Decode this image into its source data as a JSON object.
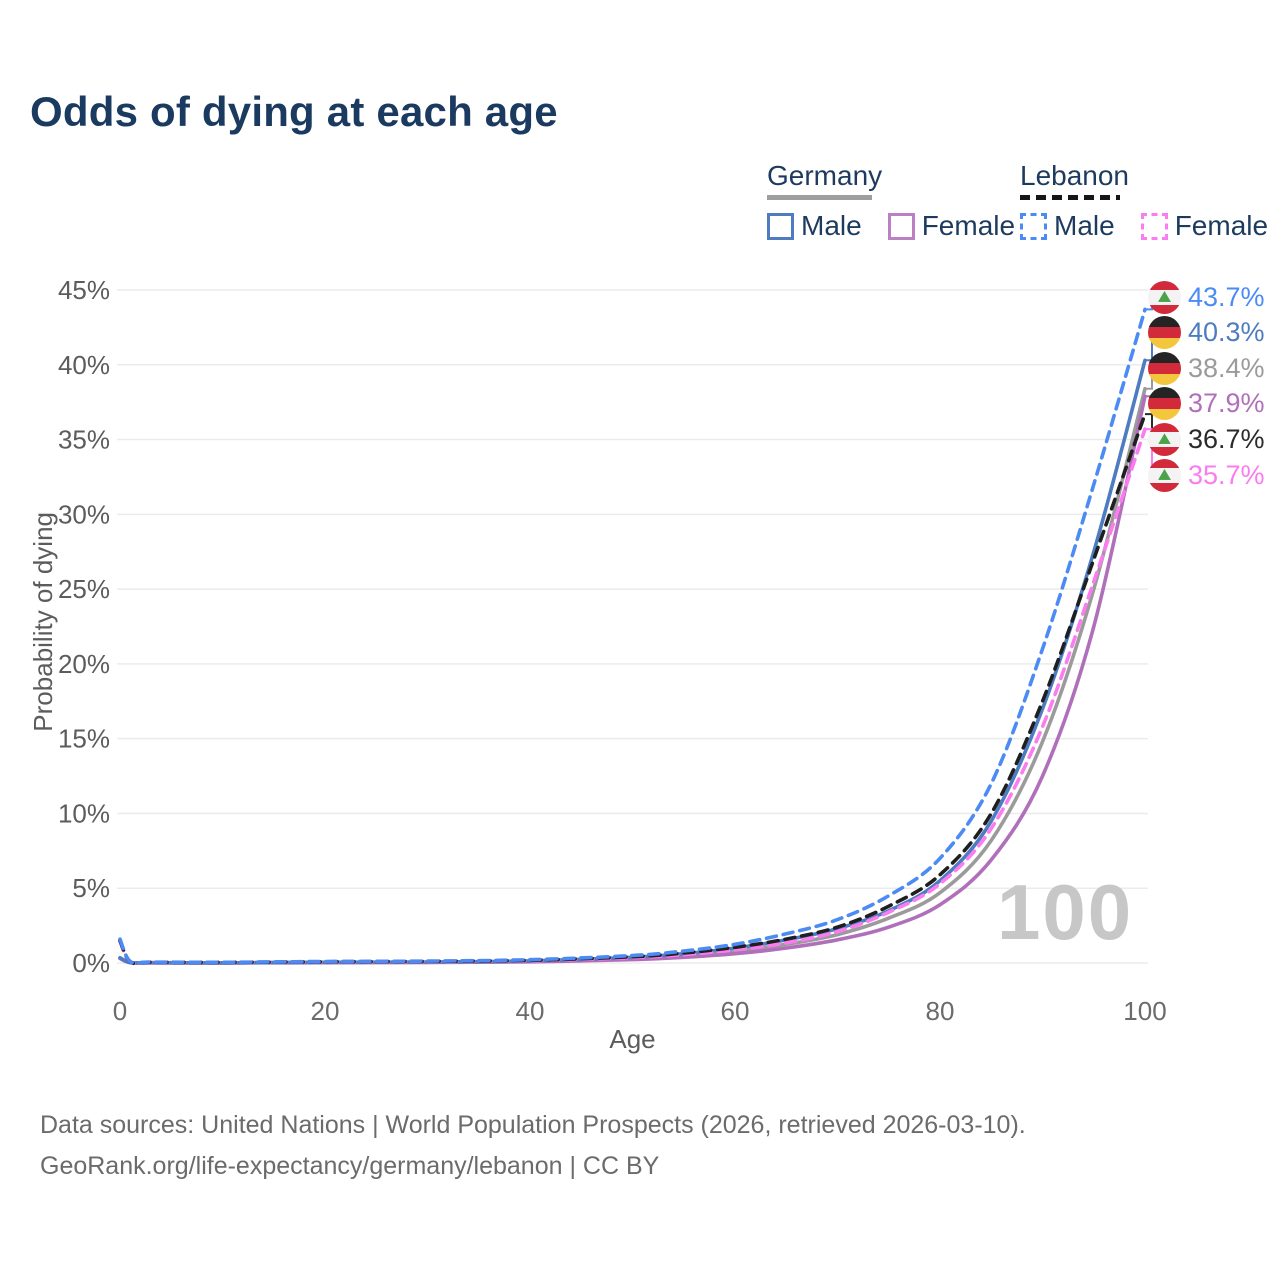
{
  "header": {
    "title": "Odds of dying at each age"
  },
  "legend": {
    "germany": {
      "label": "Germany",
      "male": "Male",
      "female": "Female"
    },
    "lebanon": {
      "label": "Lebanon",
      "male": "Male",
      "female": "Female"
    }
  },
  "watermark": {
    "text": "100"
  },
  "footer": {
    "line1": "Data sources: United Nations | World Population Prospects (2026, retrieved 2026-03-10).",
    "line2": "GeoRank.org/life-expectancy/germany/lebanon | CC BY"
  },
  "chart_data": {
    "type": "line",
    "title": "Odds of dying at each age",
    "xlabel": "Age",
    "ylabel": "Probability of dying",
    "xlim": [
      0,
      100
    ],
    "ylim_pct": [
      0,
      45
    ],
    "grid": "horizontal",
    "x_ticks": {
      "values": [
        0,
        20,
        40,
        60,
        80,
        100
      ],
      "labels": [
        "0",
        "20",
        "40",
        "60",
        "80",
        "100"
      ]
    },
    "y_ticks": {
      "values_pct": [
        0,
        5,
        10,
        15,
        20,
        25,
        30,
        35,
        40,
        45
      ],
      "labels": [
        "0%",
        "5%",
        "10%",
        "15%",
        "20%",
        "25%",
        "30%",
        "35%",
        "40%",
        "45%"
      ]
    },
    "series": [
      {
        "id": "germany-total",
        "name": "Germany (both sexes)",
        "color": "#9b9b9b",
        "dashed": false,
        "points": [
          [
            0,
            0.32
          ],
          [
            1,
            0.03
          ],
          [
            3,
            0.02
          ],
          [
            10,
            0.01
          ],
          [
            20,
            0.04
          ],
          [
            30,
            0.05
          ],
          [
            40,
            0.11
          ],
          [
            50,
            0.3
          ],
          [
            55,
            0.5
          ],
          [
            60,
            0.8
          ],
          [
            65,
            1.25
          ],
          [
            70,
            1.9
          ],
          [
            75,
            3.0
          ],
          [
            80,
            4.7
          ],
          [
            85,
            8.2
          ],
          [
            90,
            14.8
          ],
          [
            95,
            25.0
          ],
          [
            100,
            38.4
          ]
        ]
      },
      {
        "id": "germany-female",
        "name": "Germany Female",
        "color": "#b06fba",
        "dashed": false,
        "points": [
          [
            0,
            0.3
          ],
          [
            1,
            0.02
          ],
          [
            3,
            0.01
          ],
          [
            10,
            0.01
          ],
          [
            20,
            0.02
          ],
          [
            30,
            0.04
          ],
          [
            40,
            0.08
          ],
          [
            50,
            0.23
          ],
          [
            55,
            0.38
          ],
          [
            60,
            0.62
          ],
          [
            65,
            1.0
          ],
          [
            70,
            1.55
          ],
          [
            75,
            2.4
          ],
          [
            80,
            3.9
          ],
          [
            85,
            6.9
          ],
          [
            90,
            12.5
          ],
          [
            95,
            22.5
          ],
          [
            100,
            37.9
          ]
        ]
      },
      {
        "id": "germany-male",
        "name": "Germany Male",
        "color": "#4d7cc0",
        "dashed": false,
        "points": [
          [
            0,
            0.35
          ],
          [
            1,
            0.03
          ],
          [
            3,
            0.02
          ],
          [
            10,
            0.01
          ],
          [
            20,
            0.05
          ],
          [
            30,
            0.07
          ],
          [
            40,
            0.14
          ],
          [
            50,
            0.38
          ],
          [
            55,
            0.62
          ],
          [
            60,
            1.0
          ],
          [
            65,
            1.55
          ],
          [
            70,
            2.3
          ],
          [
            75,
            3.5
          ],
          [
            80,
            5.5
          ],
          [
            85,
            9.5
          ],
          [
            90,
            17.0
          ],
          [
            95,
            27.5
          ],
          [
            100,
            40.3
          ]
        ]
      },
      {
        "id": "lebanon-female",
        "name": "Lebanon Female",
        "color": "#fb7cf0",
        "dashed": true,
        "points": [
          [
            0,
            1.45
          ],
          [
            1,
            0.08
          ],
          [
            3,
            0.05
          ],
          [
            10,
            0.04
          ],
          [
            20,
            0.06
          ],
          [
            30,
            0.09
          ],
          [
            40,
            0.15
          ],
          [
            50,
            0.36
          ],
          [
            55,
            0.56
          ],
          [
            60,
            0.88
          ],
          [
            65,
            1.35
          ],
          [
            70,
            2.1
          ],
          [
            75,
            3.4
          ],
          [
            80,
            5.3
          ],
          [
            85,
            9.0
          ],
          [
            90,
            15.8
          ],
          [
            95,
            25.5
          ],
          [
            100,
            35.7
          ]
        ]
      },
      {
        "id": "lebanon-total",
        "name": "Lebanon (both sexes)",
        "color": "#1f1f1f",
        "dashed": true,
        "points": [
          [
            0,
            1.5
          ],
          [
            1,
            0.09
          ],
          [
            3,
            0.05
          ],
          [
            10,
            0.04
          ],
          [
            20,
            0.08
          ],
          [
            30,
            0.11
          ],
          [
            40,
            0.18
          ],
          [
            50,
            0.42
          ],
          [
            55,
            0.67
          ],
          [
            60,
            1.05
          ],
          [
            65,
            1.6
          ],
          [
            70,
            2.4
          ],
          [
            75,
            3.8
          ],
          [
            80,
            5.9
          ],
          [
            85,
            10.0
          ],
          [
            90,
            17.5
          ],
          [
            95,
            27.0
          ],
          [
            100,
            36.7
          ]
        ]
      },
      {
        "id": "lebanon-male",
        "name": "Lebanon Male",
        "color": "#4b8bf3",
        "dashed": true,
        "points": [
          [
            0,
            1.6
          ],
          [
            1,
            0.1
          ],
          [
            3,
            0.06
          ],
          [
            10,
            0.05
          ],
          [
            20,
            0.1
          ],
          [
            30,
            0.13
          ],
          [
            40,
            0.22
          ],
          [
            50,
            0.5
          ],
          [
            55,
            0.8
          ],
          [
            60,
            1.25
          ],
          [
            65,
            1.95
          ],
          [
            70,
            2.9
          ],
          [
            75,
            4.5
          ],
          [
            80,
            7.0
          ],
          [
            85,
            12.0
          ],
          [
            90,
            21.0
          ],
          [
            95,
            32.0
          ],
          [
            100,
            43.7
          ]
        ]
      }
    ],
    "end_labels": [
      {
        "text": "43.7%",
        "value_pct": 43.7,
        "flag": "lebanon",
        "color": "#4b8bf3",
        "series": "lebanon-male"
      },
      {
        "text": "40.3%",
        "value_pct": 40.3,
        "flag": "germany",
        "color": "#4d7cc0",
        "series": "germany-male"
      },
      {
        "text": "38.4%",
        "value_pct": 38.4,
        "flag": "germany",
        "color": "#9b9b9b",
        "series": "germany-total"
      },
      {
        "text": "37.9%",
        "value_pct": 37.9,
        "flag": "germany",
        "color": "#b06fba",
        "series": "germany-female"
      },
      {
        "text": "36.7%",
        "value_pct": 36.7,
        "flag": "lebanon",
        "color": "#2b2b2b",
        "series": "lebanon-total"
      },
      {
        "text": "35.7%",
        "value_pct": 35.7,
        "flag": "lebanon",
        "color": "#fb7cf0",
        "series": "lebanon-female"
      }
    ]
  }
}
